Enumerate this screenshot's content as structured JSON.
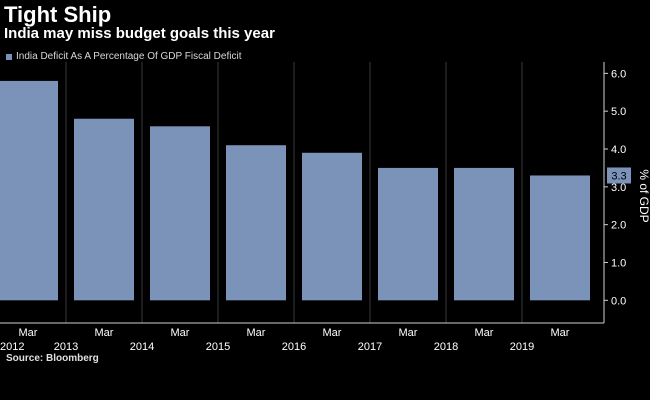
{
  "chart_data": {
    "type": "bar",
    "title": "Tight Ship",
    "subtitle": "India may miss budget goals this year",
    "categories": [
      "Mar 2012",
      "Mar 2013",
      "Mar 2014",
      "Mar 2015",
      "Mar 2016",
      "Mar 2017",
      "Mar 2018",
      "Mar 2019"
    ],
    "x_month_labels": [
      "Mar",
      "Mar",
      "Mar",
      "Mar",
      "Mar",
      "Mar",
      "Mar",
      "Mar"
    ],
    "x_year_labels": [
      "2012",
      "2013",
      "2014",
      "2015",
      "2016",
      "2017",
      "2018",
      "2019"
    ],
    "series": [
      {
        "name": "India Deficit As A Percentage Of GDP Fiscal Deficit",
        "values": [
          5.8,
          4.8,
          4.6,
          4.1,
          3.9,
          3.5,
          3.5,
          3.3
        ]
      }
    ],
    "ylabel": "% of GDP",
    "ylim": [
      -0.6,
      6.3
    ],
    "y_ticks": [
      "0.0",
      "1.0",
      "2.0",
      "3.0",
      "4.0",
      "5.0",
      "6.0"
    ],
    "last_value_callout": "3.3",
    "grid": "vertical",
    "legend_position": "top-left",
    "y_axis_position": "right",
    "colors": {
      "bar": "#7b93b8",
      "grid": "#3a3a3a",
      "background": "#000000",
      "callout": "#7b93b8"
    }
  },
  "source": "Source: Bloomberg"
}
